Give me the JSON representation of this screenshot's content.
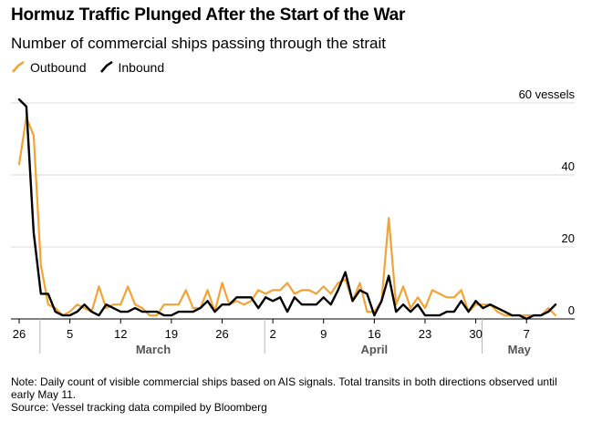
{
  "header": {
    "title": "Hormuz Traffic Plunged After the Start of the War",
    "subtitle": "Number of commercial ships passing through the strait"
  },
  "footer": {
    "note": "Note: Daily count of visible commercial ships based on AIS signals. Total transits in both directions observed until early May 11.",
    "source": "Source: Vessel tracking data compiled by Bloomberg"
  },
  "chart_data": {
    "type": "line",
    "title": "Hormuz Traffic Plunged After the Start of the War",
    "subtitle": "Number of commercial ships passing through the strait",
    "ylabel": "",
    "y_unit_label": "60 vessels",
    "ylim": [
      0,
      60
    ],
    "yticks": [
      0,
      20,
      40,
      60
    ],
    "ytick_labels": [
      "0",
      "20",
      "40",
      "60 vessels"
    ],
    "grid": true,
    "legend": "top-left",
    "x_start": "Feb 26",
    "x": [
      "Feb 26",
      "Feb 27",
      "Feb 28",
      "Mar 1",
      "Mar 2",
      "Mar 3",
      "Mar 4",
      "Mar 5",
      "Mar 6",
      "Mar 7",
      "Mar 8",
      "Mar 9",
      "Mar 10",
      "Mar 11",
      "Mar 12",
      "Mar 13",
      "Mar 14",
      "Mar 15",
      "Mar 16",
      "Mar 17",
      "Mar 18",
      "Mar 19",
      "Mar 20",
      "Mar 21",
      "Mar 22",
      "Mar 23",
      "Mar 24",
      "Mar 25",
      "Mar 26",
      "Mar 27",
      "Mar 28",
      "Mar 29",
      "Mar 30",
      "Mar 31",
      "Apr 1",
      "Apr 2",
      "Apr 3",
      "Apr 4",
      "Apr 5",
      "Apr 6",
      "Apr 7",
      "Apr 8",
      "Apr 9",
      "Apr 10",
      "Apr 11",
      "Apr 12",
      "Apr 13",
      "Apr 14",
      "Apr 15",
      "Apr 16",
      "Apr 17",
      "Apr 18",
      "Apr 19",
      "Apr 20",
      "Apr 21",
      "Apr 22",
      "Apr 23",
      "Apr 24",
      "Apr 25",
      "Apr 26",
      "Apr 27",
      "Apr 28",
      "Apr 29",
      "Apr 30",
      "May 1",
      "May 2",
      "May 3",
      "May 4",
      "May 5",
      "May 6",
      "May 7",
      "May 8",
      "May 9",
      "May 10",
      "May 11"
    ],
    "x_tick_labels": [
      {
        "day": 0,
        "label": "26"
      },
      {
        "day": 7,
        "label": "5"
      },
      {
        "day": 14,
        "label": "12"
      },
      {
        "day": 21,
        "label": "19"
      },
      {
        "day": 28,
        "label": "26"
      },
      {
        "day": 35,
        "label": "2"
      },
      {
        "day": 42,
        "label": "9"
      },
      {
        "day": 49,
        "label": "16"
      },
      {
        "day": 56,
        "label": "23"
      },
      {
        "day": 63,
        "label": "30"
      },
      {
        "day": 70,
        "label": "7"
      }
    ],
    "month_labels": [
      {
        "label": "March",
        "from": 3,
        "to": 34
      },
      {
        "label": "April",
        "from": 34,
        "to": 64
      },
      {
        "label": "May",
        "from": 64,
        "to": 74
      }
    ],
    "month_dividers": [
      3,
      34,
      64
    ],
    "series": [
      {
        "name": "Outbound",
        "color": "#f5a235",
        "values": [
          43,
          56,
          51,
          15,
          4,
          3,
          1,
          2,
          4,
          3,
          2,
          9,
          3,
          4,
          4,
          9,
          4,
          3,
          1,
          1,
          4,
          4,
          4,
          8,
          3,
          3,
          8,
          2,
          10,
          4,
          5,
          4,
          5,
          8,
          7,
          8,
          8,
          10,
          7,
          8,
          8,
          7,
          9,
          7,
          10,
          11,
          5,
          10,
          2,
          2,
          5,
          28,
          4,
          9,
          3,
          6,
          3,
          8,
          7,
          6,
          6,
          8,
          2,
          4,
          4,
          4,
          2,
          1,
          1,
          1,
          1,
          1,
          1,
          3,
          1
        ],
        "mark_values": [
          43,
          56,
          51,
          15,
          4,
          3,
          1,
          2,
          4,
          3,
          2,
          9,
          3,
          4,
          4,
          9,
          4,
          3,
          1,
          1,
          4,
          4,
          4,
          8,
          3,
          3,
          8,
          2,
          10,
          4,
          5,
          4,
          5,
          8,
          7,
          8,
          8,
          10,
          7,
          8,
          8,
          7,
          9,
          7,
          10,
          11,
          5,
          10,
          2,
          2,
          5,
          28,
          4,
          9,
          3,
          6,
          3,
          8,
          7,
          6,
          6,
          8,
          2,
          4,
          4,
          4,
          2,
          1,
          1,
          1,
          1,
          1,
          1,
          3,
          1
        ]
      },
      {
        "name": "Inbound",
        "color": "#000000",
        "values": [
          61,
          59,
          24,
          7,
          7,
          2,
          1,
          1,
          2,
          4,
          2,
          1,
          4,
          3,
          2,
          2,
          3,
          2,
          2,
          2,
          1,
          1,
          2,
          2,
          2,
          3,
          5,
          2,
          4,
          4,
          6,
          6,
          6,
          3,
          6,
          5,
          6,
          2,
          6,
          4,
          4,
          4,
          6,
          4,
          8,
          13,
          5,
          8,
          7,
          1,
          5,
          12,
          2,
          4,
          2,
          4,
          1,
          1,
          1,
          2,
          2,
          5,
          2,
          5,
          3,
          4,
          3,
          2,
          1,
          1,
          0,
          1,
          1,
          2,
          4
        ],
        "mark_values": [
          61,
          59,
          24,
          7,
          7,
          2,
          1,
          1,
          2,
          4,
          2,
          1,
          4,
          3,
          2,
          2,
          3,
          2,
          2,
          2,
          1,
          1,
          2,
          2,
          2,
          3,
          5,
          2,
          4,
          4,
          6,
          6,
          6,
          3,
          6,
          5,
          6,
          2,
          6,
          4,
          4,
          4,
          6,
          4,
          8,
          13,
          5,
          8,
          7,
          1,
          5,
          12,
          2,
          4,
          2,
          4,
          1,
          1,
          1,
          2,
          2,
          5,
          2,
          5,
          3,
          4,
          3,
          2,
          1,
          1,
          0,
          1,
          1,
          2,
          4
        ]
      }
    ]
  }
}
